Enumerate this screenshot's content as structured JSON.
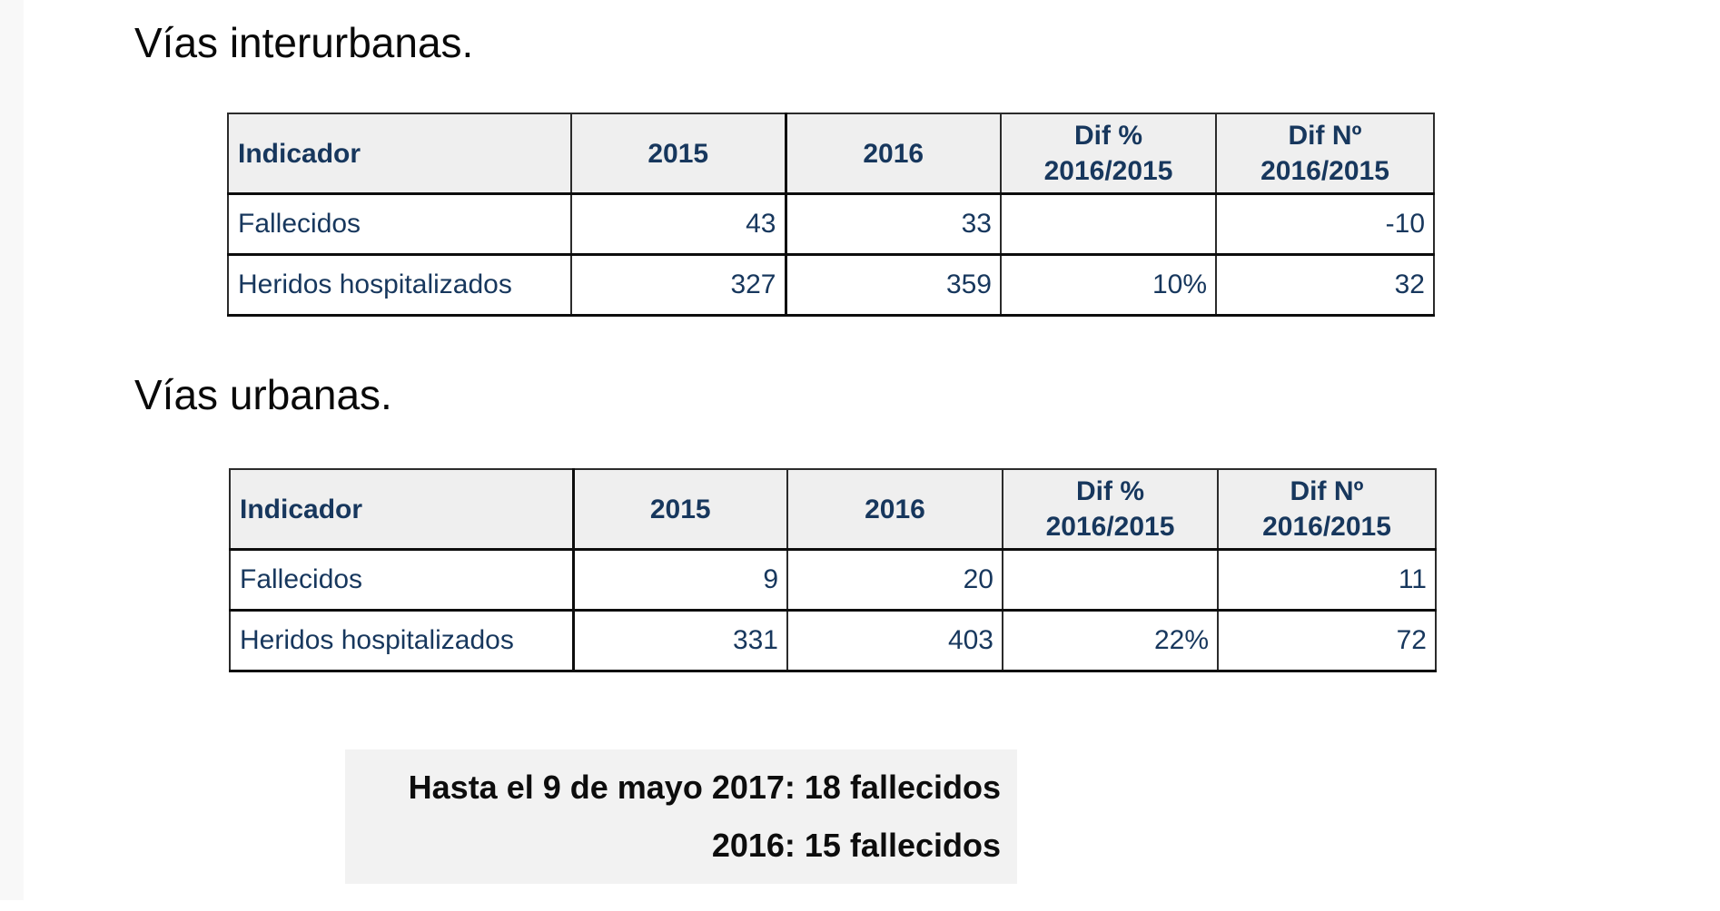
{
  "colors": {
    "table_text_navy": "#17375d",
    "table_header_bg": "#efefef",
    "summary_box_bg": "#f2f2f2",
    "border_dark": "#0d0d0d",
    "page_bg": "#ffffff",
    "left_strip_bg": "#f8f8f8"
  },
  "sections": {
    "interurban": {
      "title": "Vías interurbanas.",
      "table": {
        "headers": [
          "Indicador",
          "2015",
          "2016",
          "Dif %\n2016/2015",
          "Dif Nº\n2016/2015"
        ],
        "rows": [
          [
            "Fallecidos",
            "43",
            "33",
            "",
            "-10"
          ],
          [
            "Heridos hospitalizados",
            "327",
            "359",
            "10%",
            "32"
          ]
        ]
      }
    },
    "urban": {
      "title": "Vías urbanas.",
      "table": {
        "headers": [
          "Indicador",
          "2015",
          "2016",
          "Dif %\n2016/2015",
          "Dif Nº\n2016/2015"
        ],
        "rows": [
          [
            "Fallecidos",
            "9",
            "20",
            "",
            "11"
          ],
          [
            "Heridos hospitalizados",
            "331",
            "403",
            "22%",
            "72"
          ]
        ]
      }
    },
    "summary_box": {
      "line1": "Hasta el 9 de mayo 2017: 18 fallecidos",
      "line2": "2016: 15 fallecidos"
    }
  }
}
